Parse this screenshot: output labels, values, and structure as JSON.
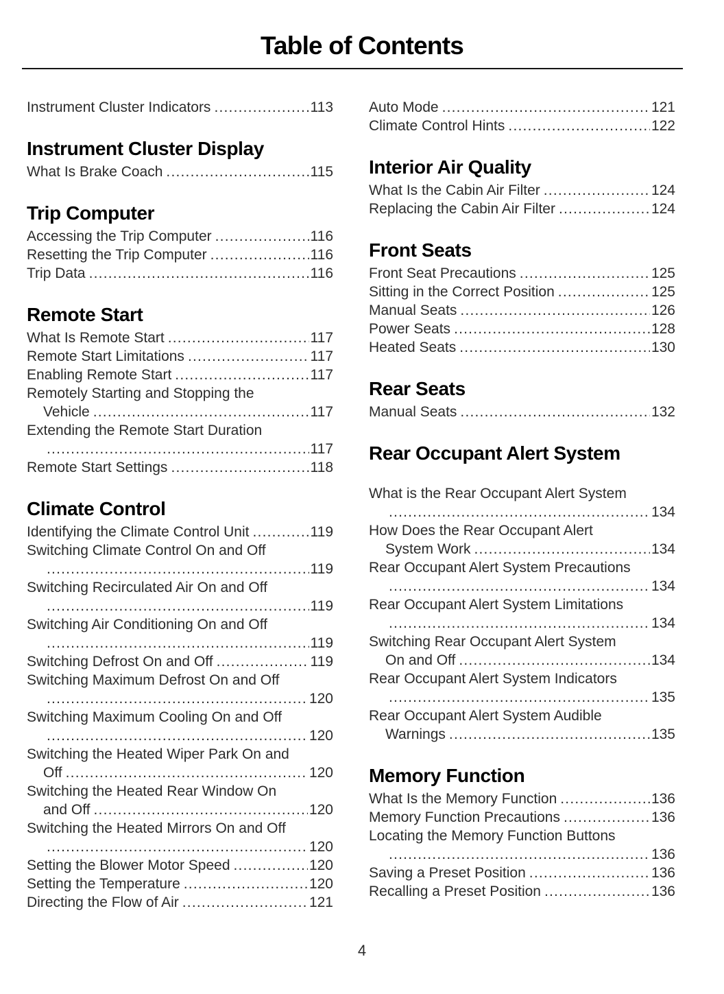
{
  "page": {
    "title": "Table of Contents",
    "footer_page_number": "4"
  },
  "colors": {
    "body_text": "#2b2b2b",
    "heading_text": "#000000",
    "rule": "#151515",
    "background": "#ffffff"
  },
  "toc": {
    "left": [
      {
        "heading": "",
        "entries": [
          {
            "lines": [
              "Instrument Cluster Indicators"
            ],
            "page": "113"
          }
        ]
      },
      {
        "heading": "Instrument Cluster Display",
        "entries": [
          {
            "lines": [
              "What Is Brake Coach"
            ],
            "page": "115"
          }
        ]
      },
      {
        "heading": "Trip Computer",
        "entries": [
          {
            "lines": [
              "Accessing the Trip Computer"
            ],
            "page": "116"
          },
          {
            "lines": [
              "Resetting the Trip Computer"
            ],
            "page": "116"
          },
          {
            "lines": [
              "Trip Data"
            ],
            "page": "116"
          }
        ]
      },
      {
        "heading": "Remote Start",
        "entries": [
          {
            "lines": [
              "What Is Remote Start"
            ],
            "page": "117"
          },
          {
            "lines": [
              "Remote Start Limitations"
            ],
            "page": "117"
          },
          {
            "lines": [
              "Enabling Remote Start"
            ],
            "page": "117"
          },
          {
            "lines": [
              "Remotely Starting and Stopping the",
              "Vehicle"
            ],
            "page": "117"
          },
          {
            "lines": [
              "Extending the Remote Start Duration",
              ""
            ],
            "page": "117"
          },
          {
            "lines": [
              "Remote Start Settings"
            ],
            "page": "118"
          }
        ]
      },
      {
        "heading": "Climate Control",
        "entries": [
          {
            "lines": [
              "Identifying the Climate Control Unit"
            ],
            "page": "119"
          },
          {
            "lines": [
              "Switching Climate Control On and Off",
              ""
            ],
            "page": "119"
          },
          {
            "lines": [
              "Switching Recirculated Air On and Off",
              ""
            ],
            "page": "119"
          },
          {
            "lines": [
              "Switching Air Conditioning On and Off",
              ""
            ],
            "page": "119"
          },
          {
            "lines": [
              "Switching Defrost On and Off"
            ],
            "page": "119"
          },
          {
            "lines": [
              "Switching Maximum Defrost On and Off",
              ""
            ],
            "page": "120"
          },
          {
            "lines": [
              "Switching Maximum Cooling On and Off",
              ""
            ],
            "page": "120"
          },
          {
            "lines": [
              "Switching the Heated Wiper Park On and",
              "Off"
            ],
            "page": "120"
          },
          {
            "lines": [
              "Switching the Heated Rear Window On",
              "and Off"
            ],
            "page": "120"
          },
          {
            "lines": [
              "Switching the Heated Mirrors On and Off",
              ""
            ],
            "page": "120"
          },
          {
            "lines": [
              "Setting the Blower Motor Speed"
            ],
            "page": "120"
          },
          {
            "lines": [
              "Setting the Temperature"
            ],
            "page": "120"
          },
          {
            "lines": [
              "Directing the Flow of Air"
            ],
            "page": "121"
          }
        ]
      }
    ],
    "right": [
      {
        "heading": "",
        "entries": [
          {
            "lines": [
              "Auto Mode"
            ],
            "page": "121"
          },
          {
            "lines": [
              "Climate Control Hints"
            ],
            "page": "122"
          }
        ]
      },
      {
        "heading": "Interior Air Quality",
        "entries": [
          {
            "lines": [
              "What Is the Cabin Air Filter"
            ],
            "page": "124"
          },
          {
            "lines": [
              "Replacing the Cabin Air Filter"
            ],
            "page": "124"
          }
        ]
      },
      {
        "heading": "Front Seats",
        "entries": [
          {
            "lines": [
              "Front Seat Precautions"
            ],
            "page": "125"
          },
          {
            "lines": [
              "Sitting in the Correct Position"
            ],
            "page": "125"
          },
          {
            "lines": [
              "Manual Seats"
            ],
            "page": "126"
          },
          {
            "lines": [
              "Power Seats"
            ],
            "page": "128"
          },
          {
            "lines": [
              "Heated Seats"
            ],
            "page": "130"
          }
        ]
      },
      {
        "heading": "Rear Seats",
        "entries": [
          {
            "lines": [
              "Manual Seats"
            ],
            "page": "132"
          }
        ]
      },
      {
        "heading": "Rear Occupant Alert System",
        "extra_gap": true,
        "entries": [
          {
            "lines": [
              "What is the Rear Occupant Alert System",
              ""
            ],
            "page": "134"
          },
          {
            "lines": [
              "How Does the Rear Occupant Alert",
              "System Work"
            ],
            "page": "134"
          },
          {
            "lines": [
              "Rear Occupant Alert System Precautions",
              ""
            ],
            "page": "134"
          },
          {
            "lines": [
              "Rear Occupant Alert System Limitations",
              ""
            ],
            "page": "134"
          },
          {
            "lines": [
              "Switching Rear Occupant Alert System",
              "On and Off"
            ],
            "page": "134"
          },
          {
            "lines": [
              "Rear Occupant Alert System Indicators",
              ""
            ],
            "page": "135"
          },
          {
            "lines": [
              "Rear Occupant Alert System Audible",
              "Warnings"
            ],
            "page": "135"
          }
        ]
      },
      {
        "heading": "Memory Function",
        "entries": [
          {
            "lines": [
              "What Is the Memory Function"
            ],
            "page": "136"
          },
          {
            "lines": [
              "Memory Function Precautions"
            ],
            "page": "136"
          },
          {
            "lines": [
              "Locating the Memory Function Buttons",
              ""
            ],
            "page": "136"
          },
          {
            "lines": [
              "Saving a Preset Position"
            ],
            "page": "136"
          },
          {
            "lines": [
              "Recalling a Preset Position"
            ],
            "page": "136"
          }
        ]
      }
    ]
  }
}
